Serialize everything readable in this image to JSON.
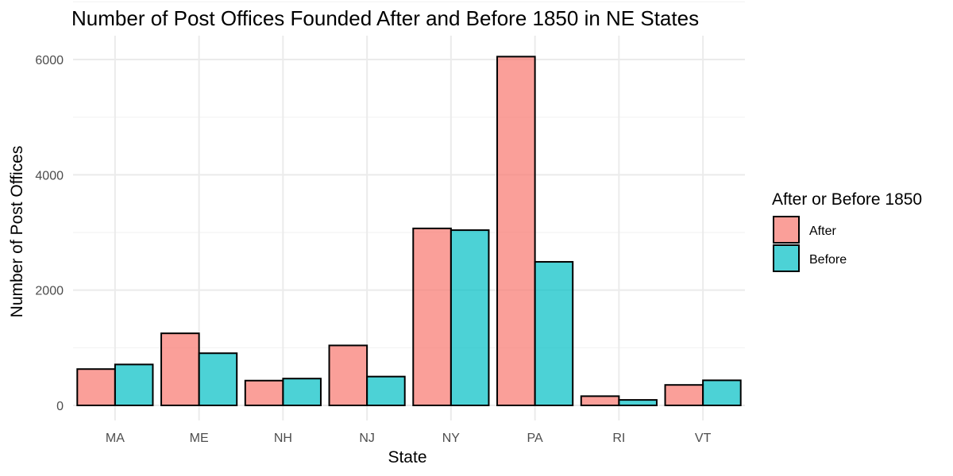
{
  "chart_data": {
    "type": "bar",
    "title": "Number of Post Offices Founded After and Before 1850 in NE States",
    "xlabel": "State",
    "ylabel": "Number of Post Offices",
    "categories": [
      "MA",
      "ME",
      "NH",
      "NJ",
      "NY",
      "PA",
      "RI",
      "VT"
    ],
    "series": [
      {
        "name": "After",
        "color": "#F8766D",
        "values": [
          630,
          1250,
          430,
          1040,
          3070,
          6050,
          160,
          355
        ]
      },
      {
        "name": "Before",
        "color": "#00BFC4",
        "values": [
          710,
          905,
          465,
          500,
          3040,
          2490,
          95,
          435
        ]
      }
    ],
    "ylim": [
      0,
      6000
    ],
    "yticks": [
      "0",
      "2000",
      "4000",
      "6000"
    ],
    "legend": {
      "title": "After or Before 1850",
      "position": "right"
    },
    "grid": true
  }
}
